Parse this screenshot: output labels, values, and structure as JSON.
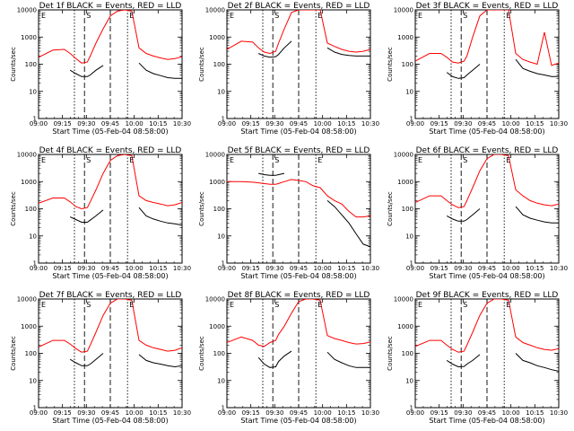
{
  "chart_data": [
    {
      "type": "line",
      "title": "Det 1f BLACK = Events, RED = LLD",
      "xlabel": "Start Time (05-Feb-04 08:58:00)",
      "ylabel": "Counts/sec",
      "y_scale": "log",
      "ylim": [
        1,
        10000
      ],
      "xlim": [
        0,
        100
      ],
      "y_ticks": [
        "1",
        "10",
        "100",
        "1000",
        "10000"
      ],
      "x_ticks": [
        "09:00",
        "09:15",
        "09:30",
        "09:45",
        "10:00",
        "10:15",
        "10:30"
      ],
      "markers": {
        "E_left": "E",
        "S": "S",
        "E_right": "E"
      },
      "x": [
        0,
        10,
        18,
        22,
        26,
        30,
        34,
        36,
        40,
        45,
        50,
        55,
        60,
        65,
        70,
        75,
        80,
        85,
        90,
        95,
        100
      ],
      "series": [
        {
          "color": "#ff0000",
          "values": [
            180,
            330,
            350,
            250,
            160,
            110,
            120,
            200,
            600,
            2000,
            6000,
            9000,
            10000,
            9000,
            400,
            250,
            200,
            170,
            150,
            160,
            190
          ]
        },
        {
          "color": "#000000",
          "values": [
            null,
            null,
            null,
            60,
            45,
            35,
            35,
            40,
            60,
            90,
            null,
            null,
            null,
            null,
            110,
            60,
            45,
            38,
            32,
            30,
            30
          ]
        }
      ],
      "dotted_x": [
        25,
        62
      ],
      "dashed_x": [
        32,
        50
      ]
    },
    {
      "type": "line",
      "title": "Det 2f BLACK = Events, RED = LLD",
      "xlabel": "Start Time (05-Feb-04 08:58:00)",
      "ylabel": "Counts/sec",
      "y_scale": "log",
      "ylim": [
        1,
        10000
      ],
      "xlim": [
        0,
        100
      ],
      "y_ticks": [
        "1",
        "10",
        "100",
        "1000",
        "10000"
      ],
      "x_ticks": [
        "09:00",
        "09:15",
        "09:30",
        "09:45",
        "10:00",
        "10:15",
        "10:30"
      ],
      "markers": {
        "E_left": "E",
        "S": "S",
        "E_right": "E"
      },
      "x": [
        0,
        10,
        18,
        22,
        26,
        30,
        34,
        36,
        40,
        45,
        50,
        55,
        60,
        65,
        70,
        75,
        80,
        85,
        90,
        95,
        100
      ],
      "series": [
        {
          "color": "#ff0000",
          "values": [
            350,
            700,
            650,
            400,
            280,
            250,
            300,
            600,
            2000,
            8000,
            10000,
            10000,
            10000,
            10000,
            600,
            450,
            350,
            300,
            280,
            300,
            350
          ]
        },
        {
          "color": "#000000",
          "values": [
            null,
            null,
            null,
            250,
            200,
            180,
            190,
            230,
            400,
            700,
            null,
            null,
            null,
            null,
            400,
            280,
            230,
            210,
            200,
            200,
            200
          ]
        }
      ],
      "dotted_x": [
        25,
        62
      ],
      "dashed_x": [
        32,
        50
      ]
    },
    {
      "type": "line",
      "title": "Det 3f BLACK = Events, RED = LLD",
      "xlabel": "Start Time (05-Feb-04 08:58:00)",
      "ylabel": "Counts/sec",
      "y_scale": "log",
      "ylim": [
        1,
        10000
      ],
      "xlim": [
        0,
        100
      ],
      "y_ticks": [
        "1",
        "10",
        "100",
        "1000",
        "10000"
      ],
      "x_ticks": [
        "09:00",
        "09:15",
        "09:30",
        "09:45",
        "10:00",
        "10:15",
        "10:30"
      ],
      "markers": {
        "E_left": "E",
        "S": "S",
        "E_right": "E"
      },
      "x": [
        0,
        10,
        18,
        22,
        26,
        30,
        34,
        36,
        40,
        45,
        50,
        55,
        60,
        65,
        70,
        75,
        80,
        85,
        90,
        95,
        100
      ],
      "series": [
        {
          "color": "#ff0000",
          "values": [
            130,
            250,
            250,
            180,
            120,
            110,
            130,
            200,
            1000,
            6000,
            10000,
            10000,
            10000,
            10000,
            250,
            150,
            120,
            100,
            1500,
            90,
            110
          ]
        },
        {
          "color": "#000000",
          "values": [
            null,
            null,
            null,
            50,
            35,
            30,
            32,
            40,
            60,
            100,
            null,
            null,
            null,
            null,
            150,
            70,
            55,
            45,
            40,
            35,
            35
          ]
        }
      ],
      "dotted_x": [
        25,
        62
      ],
      "dashed_x": [
        32,
        50
      ]
    },
    {
      "type": "line",
      "title": "Det 4f BLACK = Events, RED = LLD",
      "xlabel": "Start Time (05-Feb-04 08:58:00)",
      "ylabel": "Counts/sec",
      "y_scale": "log",
      "ylim": [
        1,
        10000
      ],
      "xlim": [
        0,
        100
      ],
      "y_ticks": [
        "1",
        "10",
        "100",
        "1000",
        "10000"
      ],
      "x_ticks": [
        "09:00",
        "09:15",
        "09:30",
        "09:45",
        "10:00",
        "10:15",
        "10:30"
      ],
      "markers": {
        "E_left": "E",
        "S": "S",
        "E_right": "E"
      },
      "x": [
        0,
        10,
        18,
        22,
        26,
        30,
        34,
        36,
        40,
        45,
        50,
        55,
        60,
        65,
        70,
        75,
        80,
        85,
        90,
        95,
        100
      ],
      "series": [
        {
          "color": "#ff0000",
          "values": [
            160,
            250,
            250,
            180,
            120,
            100,
            110,
            180,
            500,
            2000,
            6000,
            9000,
            10000,
            9000,
            300,
            200,
            170,
            150,
            130,
            140,
            170
          ]
        },
        {
          "color": "#000000",
          "values": [
            null,
            null,
            null,
            50,
            40,
            32,
            32,
            38,
            55,
            90,
            null,
            null,
            null,
            null,
            110,
            55,
            42,
            35,
            30,
            28,
            25
          ]
        }
      ],
      "dotted_x": [
        25,
        62
      ],
      "dashed_x": [
        32,
        50
      ]
    },
    {
      "type": "line",
      "title": "Det 5f BLACK = Events, RED = LLD",
      "xlabel": "Start Time (05-Feb-04 08:58:00)",
      "ylabel": "Counts/sec",
      "y_scale": "log",
      "ylim": [
        1,
        10000
      ],
      "xlim": [
        0,
        100
      ],
      "y_ticks": [
        "1",
        "10",
        "100",
        "1000",
        "10000"
      ],
      "x_ticks": [
        "09:00",
        "09:15",
        "09:30",
        "09:45",
        "10:00",
        "10:15",
        "10:30"
      ],
      "markers": {
        "E_left": "E",
        "S": "S",
        "E_right": "E"
      },
      "x": [
        0,
        10,
        18,
        22,
        26,
        30,
        34,
        36,
        40,
        45,
        50,
        55,
        60,
        65,
        70,
        75,
        80,
        85,
        90,
        95,
        100
      ],
      "series": [
        {
          "color": "#ff0000",
          "values": [
            1000,
            1000,
            950,
            900,
            850,
            800,
            800,
            850,
            1000,
            1200,
            1100,
            1000,
            700,
            600,
            300,
            200,
            150,
            80,
            50,
            50,
            55
          ]
        },
        {
          "color": "#000000",
          "values": [
            null,
            null,
            null,
            2000,
            1800,
            1700,
            1700,
            1800,
            2000,
            null,
            null,
            null,
            null,
            null,
            200,
            120,
            60,
            30,
            12,
            5,
            4
          ]
        }
      ],
      "dotted_x": [
        25,
        62
      ],
      "dashed_x": [
        32,
        50
      ]
    },
    {
      "type": "line",
      "title": "Det 6f BLACK = Events, RED = LLD",
      "xlabel": "Start Time (05-Feb-04 08:58:00)",
      "ylabel": "Counts/sec",
      "y_scale": "log",
      "ylim": [
        1,
        10000
      ],
      "xlim": [
        0,
        100
      ],
      "y_ticks": [
        "1",
        "10",
        "100",
        "1000",
        "10000"
      ],
      "x_ticks": [
        "09:00",
        "09:15",
        "09:30",
        "09:45",
        "10:00",
        "10:15",
        "10:30"
      ],
      "markers": {
        "E_left": "E",
        "S": "S",
        "E_right": "E"
      },
      "x": [
        0,
        10,
        18,
        22,
        26,
        30,
        34,
        36,
        40,
        45,
        50,
        55,
        60,
        65,
        70,
        75,
        80,
        85,
        90,
        95,
        100
      ],
      "series": [
        {
          "color": "#ff0000",
          "values": [
            170,
            300,
            300,
            200,
            140,
            110,
            120,
            200,
            600,
            2500,
            7000,
            10000,
            10000,
            9000,
            500,
            300,
            200,
            160,
            140,
            130,
            150
          ]
        },
        {
          "color": "#000000",
          "values": [
            null,
            null,
            null,
            55,
            42,
            35,
            35,
            40,
            60,
            100,
            null,
            null,
            null,
            null,
            120,
            60,
            45,
            38,
            33,
            30,
            30
          ]
        }
      ],
      "dotted_x": [
        25,
        62
      ],
      "dashed_x": [
        32,
        50
      ]
    },
    {
      "type": "line",
      "title": "Det 7f BLACK = Events, RED = LLD",
      "xlabel": "Start Time (05-Feb-04 08:58:00)",
      "ylabel": "Counts/sec",
      "y_scale": "log",
      "ylim": [
        1,
        10000
      ],
      "xlim": [
        0,
        100
      ],
      "y_ticks": [
        "1",
        "10",
        "100",
        "1000",
        "10000"
      ],
      "x_ticks": [
        "09:00",
        "09:15",
        "09:30",
        "09:45",
        "10:00",
        "10:15",
        "10:30"
      ],
      "markers": {
        "E_left": "E",
        "S": "S",
        "E_right": "E"
      },
      "x": [
        0,
        10,
        18,
        22,
        26,
        30,
        34,
        36,
        40,
        45,
        50,
        55,
        60,
        65,
        70,
        75,
        80,
        85,
        90,
        95,
        100
      ],
      "series": [
        {
          "color": "#ff0000",
          "values": [
            170,
            300,
            300,
            220,
            150,
            110,
            120,
            200,
            600,
            2500,
            7000,
            10000,
            10000,
            9000,
            300,
            200,
            160,
            140,
            120,
            130,
            160
          ]
        },
        {
          "color": "#000000",
          "values": [
            null,
            null,
            null,
            60,
            45,
            35,
            35,
            40,
            60,
            100,
            null,
            null,
            null,
            null,
            90,
            55,
            45,
            40,
            35,
            32,
            35
          ]
        }
      ],
      "dotted_x": [
        25,
        62
      ],
      "dashed_x": [
        32,
        50
      ]
    },
    {
      "type": "line",
      "title": "Det 8f BLACK = Events, RED = LLD",
      "xlabel": "Start Time (05-Feb-04 08:58:00)",
      "ylabel": "Counts/sec",
      "y_scale": "log",
      "ylim": [
        1,
        10000
      ],
      "xlim": [
        0,
        100
      ],
      "y_ticks": [
        "1",
        "10",
        "100",
        "1000",
        "10000"
      ],
      "x_ticks": [
        "09:00",
        "09:15",
        "09:30",
        "09:45",
        "10:00",
        "10:15",
        "10:30"
      ],
      "markers": {
        "E_left": "E",
        "S": "S",
        "E_right": "E"
      },
      "x": [
        0,
        10,
        18,
        22,
        26,
        30,
        34,
        36,
        40,
        45,
        50,
        55,
        60,
        65,
        70,
        75,
        80,
        85,
        90,
        95,
        100
      ],
      "series": [
        {
          "color": "#ff0000",
          "values": [
            250,
            400,
            300,
            200,
            180,
            250,
            300,
            500,
            1000,
            3000,
            8000,
            10000,
            10000,
            9000,
            450,
            350,
            300,
            250,
            220,
            230,
            260
          ]
        },
        {
          "color": "#000000",
          "values": [
            null,
            null,
            null,
            70,
            40,
            30,
            32,
            50,
            80,
            120,
            null,
            null,
            null,
            null,
            110,
            60,
            45,
            35,
            30,
            30,
            30
          ]
        }
      ],
      "dotted_x": [
        25,
        62
      ],
      "dashed_x": [
        32,
        50
      ]
    },
    {
      "type": "line",
      "title": "Det 9f BLACK = Events, RED = LLD",
      "xlabel": "Start Time (05-Feb-04 08:58:00)",
      "ylabel": "Counts/sec",
      "y_scale": "log",
      "ylim": [
        1,
        10000
      ],
      "xlim": [
        0,
        100
      ],
      "y_ticks": [
        "1",
        "10",
        "100",
        "1000",
        "10000"
      ],
      "x_ticks": [
        "09:00",
        "09:15",
        "09:30",
        "09:45",
        "10:00",
        "10:15",
        "10:30"
      ],
      "markers": {
        "E_left": "E",
        "S": "S",
        "E_right": "E"
      },
      "x": [
        0,
        10,
        18,
        22,
        26,
        30,
        34,
        36,
        40,
        45,
        50,
        55,
        60,
        65,
        70,
        75,
        80,
        85,
        90,
        95,
        100
      ],
      "series": [
        {
          "color": "#ff0000",
          "values": [
            180,
            300,
            300,
            200,
            140,
            110,
            120,
            200,
            600,
            2500,
            7000,
            10000,
            10000,
            9000,
            400,
            250,
            200,
            160,
            140,
            130,
            150
          ]
        },
        {
          "color": "#000000",
          "values": [
            null,
            null,
            null,
            55,
            40,
            32,
            33,
            40,
            55,
            90,
            null,
            null,
            null,
            null,
            100,
            55,
            45,
            35,
            30,
            25,
            22
          ]
        }
      ],
      "dotted_x": [
        25,
        62
      ],
      "dashed_x": [
        32,
        50
      ]
    }
  ]
}
